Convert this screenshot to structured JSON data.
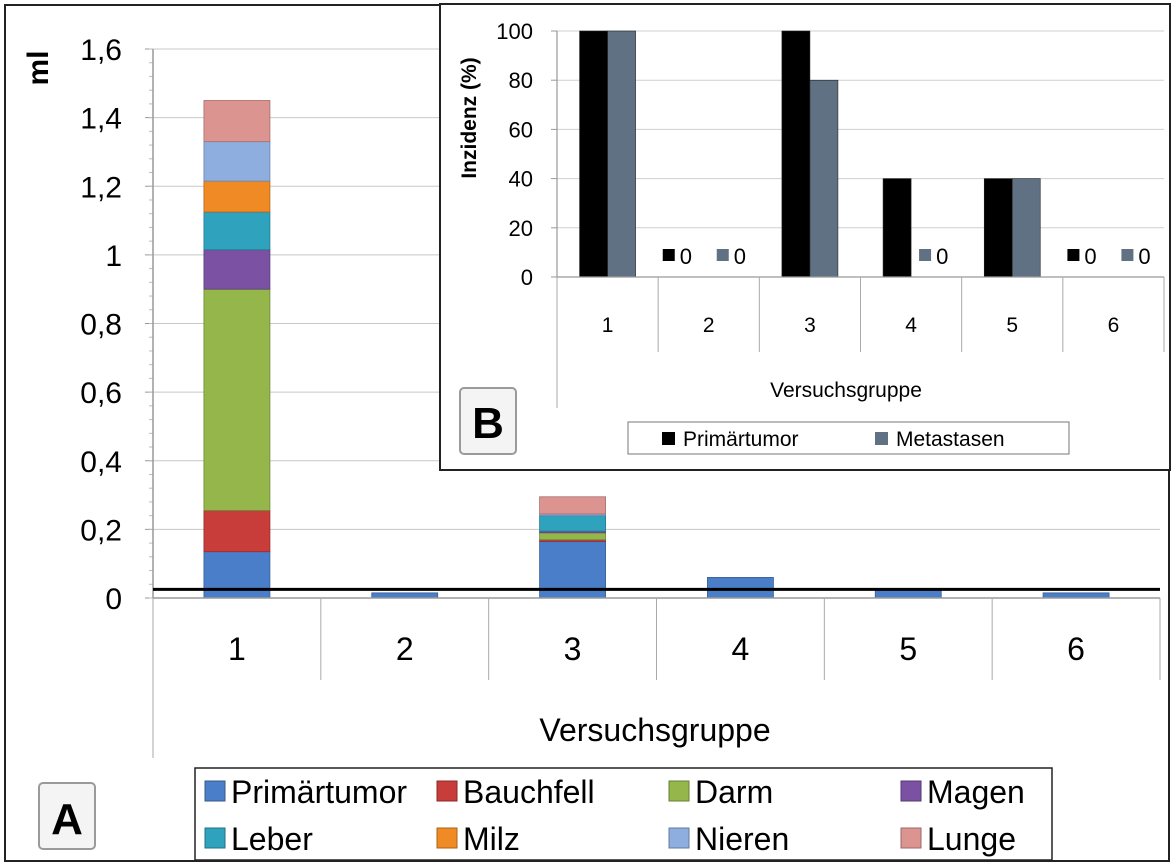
{
  "chart_data": [
    {
      "type": "bar",
      "stacked": true,
      "panel_label": "A",
      "xlabel": "Versuchsgruppe",
      "ylabel": "ml",
      "ylim": [
        0,
        1.6
      ],
      "yticks": [
        "0",
        "0,2",
        "0,4",
        "0,6",
        "0,8",
        "1",
        "1,2",
        "1,4",
        "1,6"
      ],
      "categories": [
        "1",
        "2",
        "3",
        "4",
        "5",
        "6"
      ],
      "grid": true,
      "threshold_line": 0.025,
      "legend_position": "bottom",
      "series": [
        {
          "name": "Primärtumor",
          "color": "#4a7ec8",
          "values": [
            0.135,
            0.015,
            0.165,
            0.06,
            0.025,
            0.015
          ]
        },
        {
          "name": "Bauchfell",
          "color": "#c83c3a",
          "values": [
            0.12,
            0,
            0.005,
            0,
            0,
            0
          ]
        },
        {
          "name": "Darm",
          "color": "#94b64a",
          "values": [
            0.645,
            0,
            0.02,
            0,
            0,
            0
          ]
        },
        {
          "name": "Magen",
          "color": "#7b52a3",
          "values": [
            0.115,
            0,
            0.005,
            0,
            0,
            0
          ]
        },
        {
          "name": "Leber",
          "color": "#2fa3bd",
          "values": [
            0.11,
            0,
            0.045,
            0,
            0,
            0
          ]
        },
        {
          "name": "Milz",
          "color": "#f08a24",
          "values": [
            0.09,
            0,
            0,
            0,
            0,
            0
          ]
        },
        {
          "name": "Nieren",
          "color": "#8eaee0",
          "values": [
            0.115,
            0,
            0.005,
            0,
            0,
            0
          ]
        },
        {
          "name": "Lunge",
          "color": "#dc9491",
          "values": [
            0.12,
            0,
            0.05,
            0,
            0,
            0
          ]
        }
      ]
    },
    {
      "type": "bar",
      "panel_label": "B",
      "xlabel": "Versuchsgruppe",
      "ylabel": "Inzidenz (%)",
      "ylim": [
        0,
        100
      ],
      "yticks": [
        "0",
        "20",
        "40",
        "60",
        "80",
        "100"
      ],
      "categories": [
        "1",
        "2",
        "3",
        "4",
        "5",
        "6"
      ],
      "grid": true,
      "legend_position": "bottom",
      "series": [
        {
          "name": "Primärtumor",
          "color": "#000000",
          "values": [
            100,
            0,
            100,
            40,
            40,
            0
          ]
        },
        {
          "name": "Metastasen",
          "color": "#5f7182",
          "values": [
            100,
            0,
            80,
            0,
            40,
            0
          ]
        }
      ],
      "zero_labels": [
        {
          "category": "2",
          "series": "Primärtumor",
          "text": "0"
        },
        {
          "category": "2",
          "series": "Metastasen",
          "text": "0"
        },
        {
          "category": "4",
          "series": "Metastasen",
          "text": "0"
        },
        {
          "category": "6",
          "series": "Primärtumor",
          "text": "0"
        },
        {
          "category": "6",
          "series": "Metastasen",
          "text": "0"
        }
      ]
    }
  ]
}
